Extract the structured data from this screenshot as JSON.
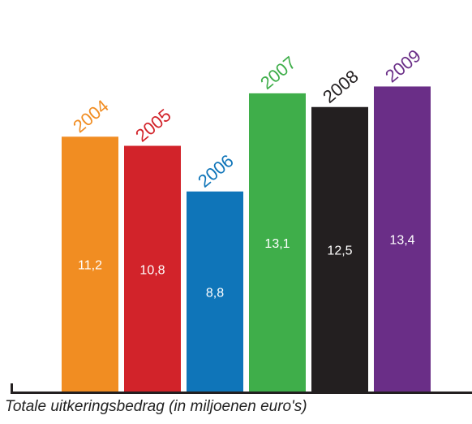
{
  "chart_data": {
    "type": "bar",
    "categories": [
      "2004",
      "2005",
      "2006",
      "2007",
      "2008",
      "2009"
    ],
    "values": [
      11.2,
      10.8,
      8.8,
      13.1,
      12.5,
      13.4
    ],
    "value_labels": [
      "11,2",
      "10,8",
      "8,8",
      "13,1",
      "12,5",
      "13,4"
    ],
    "colors": [
      "#f18d22",
      "#d2232a",
      "#0f75b9",
      "#3fae4a",
      "#231f20",
      "#6a2e87"
    ],
    "value_label_color": "#ffffff",
    "category_labels_rotated": true,
    "title": "Totale uitkeringsbedrag (in miljoenen euro's)",
    "ylim": [
      0,
      14.5
    ],
    "grid": false,
    "legend": "none"
  }
}
